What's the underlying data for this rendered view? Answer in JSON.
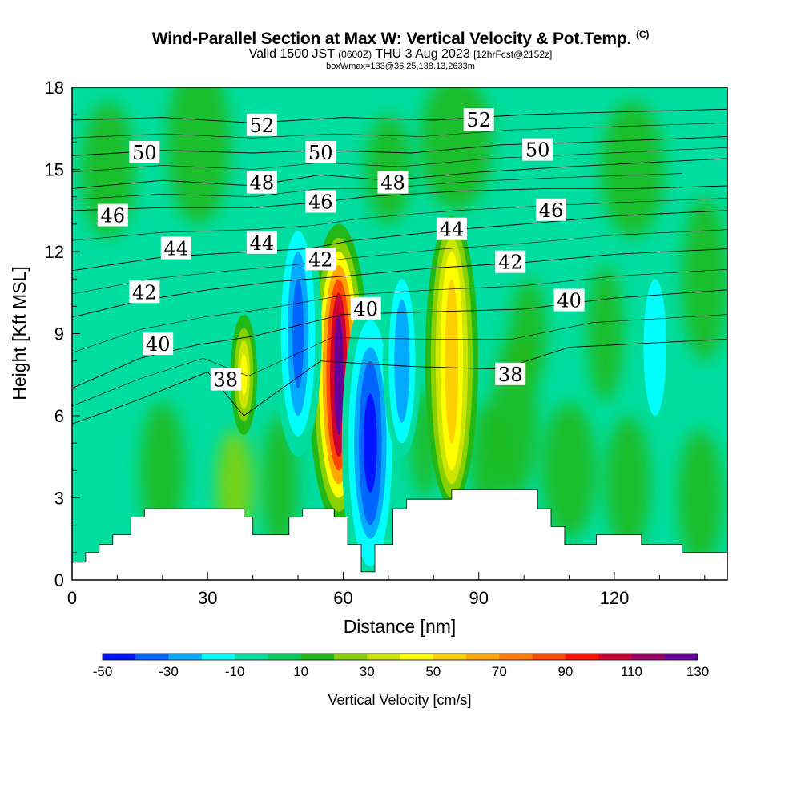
{
  "header": {
    "title": "Wind-Parallel Section at Max W: Vertical Velocity & Pot.Temp.",
    "title_mark": "(C)",
    "subtitle_valid": "Valid 1500 JST",
    "subtitle_utc": "(0600Z)",
    "subtitle_date": "THU 3 Aug 2023",
    "subtitle_fcst": "[12hrFcst@2152z]",
    "info_line": "boxWmax=133@36.25,138.13,2633m"
  },
  "chart_data": {
    "type": "heatmap",
    "title": "Wind-Parallel Section at Max W: Vertical Velocity & Pot.Temp.",
    "xlabel": "Distance [nm]",
    "ylabel": "Height [Kft MSL]",
    "xlim": [
      0,
      145
    ],
    "ylim": [
      0,
      18
    ],
    "x_ticks": [
      0,
      30,
      60,
      90,
      120
    ],
    "y_ticks": [
      0,
      3,
      6,
      9,
      12,
      15,
      18
    ],
    "colorbar": {
      "label": "Vertical Velocity [cm/s]",
      "tick_labels": [
        -50,
        -30,
        -10,
        10,
        30,
        50,
        70,
        90,
        110,
        130
      ],
      "bins": [
        -50,
        -40,
        -30,
        -20,
        -10,
        0,
        10,
        20,
        30,
        40,
        50,
        60,
        70,
        80,
        90,
        100,
        110,
        120,
        130
      ],
      "colors": [
        "#0014ff",
        "#0064ff",
        "#00aaff",
        "#00ffff",
        "#00dda0",
        "#00cc60",
        "#22b818",
        "#88d000",
        "#cce600",
        "#ffff00",
        "#ffd000",
        "#ffa800",
        "#ff7c00",
        "#ff4800",
        "#ff1000",
        "#cc0033",
        "#990066",
        "#660099"
      ]
    },
    "w_cells": [
      {
        "x": 38,
        "y": 7.5,
        "value": 42
      },
      {
        "x": 59,
        "y": 7.5,
        "value": 133
      },
      {
        "x": 84,
        "y": 8.0,
        "value": 52
      },
      {
        "x": 66,
        "y": 5.0,
        "value": -50
      },
      {
        "x": 50,
        "y": 9.0,
        "value": -35
      },
      {
        "x": 73,
        "y": 8.0,
        "value": -30
      },
      {
        "x": 129,
        "y": 8.5,
        "value": -12
      }
    ],
    "theta_contours_K": [
      {
        "value": 38,
        "heights": [
          [
            0,
            5.7
          ],
          [
            15,
            6.6
          ],
          [
            30,
            7.6
          ],
          [
            38,
            6.0
          ],
          [
            55,
            8.0
          ],
          [
            75,
            7.8
          ],
          [
            95,
            7.7
          ],
          [
            110,
            8.5
          ],
          [
            145,
            8.8
          ]
        ]
      },
      {
        "value": 40,
        "heights": [
          [
            0,
            7.0
          ],
          [
            15,
            8.1
          ],
          [
            28,
            8.6
          ],
          [
            40,
            8.9
          ],
          [
            60,
            9.7
          ],
          [
            80,
            9.8
          ],
          [
            100,
            9.9
          ],
          [
            120,
            10.3
          ],
          [
            145,
            10.6
          ]
        ]
      },
      {
        "value": 42,
        "heights": [
          [
            0,
            9.6
          ],
          [
            15,
            10.2
          ],
          [
            30,
            10.6
          ],
          [
            45,
            10.9
          ],
          [
            60,
            11.1
          ],
          [
            80,
            11.4
          ],
          [
            100,
            11.6
          ],
          [
            120,
            11.9
          ],
          [
            145,
            12.1
          ]
        ]
      },
      {
        "value": 44,
        "heights": [
          [
            0,
            11.3
          ],
          [
            20,
            11.8
          ],
          [
            40,
            12.0
          ],
          [
            52,
            12.1
          ],
          [
            62,
            12.4
          ],
          [
            85,
            12.8
          ],
          [
            100,
            13.0
          ],
          [
            120,
            13.3
          ],
          [
            145,
            13.5
          ]
        ]
      },
      {
        "value": 46,
        "heights": [
          [
            0,
            13.5
          ],
          [
            20,
            13.6
          ],
          [
            40,
            13.6
          ],
          [
            55,
            13.8
          ],
          [
            65,
            14.0
          ],
          [
            85,
            14.2
          ],
          [
            105,
            14.3
          ],
          [
            125,
            14.3
          ],
          [
            145,
            14.4
          ]
        ]
      },
      {
        "value": 48,
        "heights": [
          [
            0,
            14.3
          ],
          [
            20,
            14.6
          ],
          [
            40,
            14.4
          ],
          [
            55,
            14.8
          ],
          [
            70,
            14.6
          ],
          [
            90,
            14.9
          ],
          [
            110,
            15.1
          ],
          [
            145,
            15.4
          ]
        ]
      },
      {
        "value": 50,
        "heights": [
          [
            0,
            15.5
          ],
          [
            20,
            15.7
          ],
          [
            40,
            15.6
          ],
          [
            55,
            15.7
          ],
          [
            75,
            15.6
          ],
          [
            95,
            15.9
          ],
          [
            115,
            16.0
          ],
          [
            145,
            16.2
          ]
        ]
      },
      {
        "value": 52,
        "heights": [
          [
            0,
            16.8
          ],
          [
            20,
            16.9
          ],
          [
            40,
            16.7
          ],
          [
            60,
            16.9
          ],
          [
            80,
            16.8
          ],
          [
            100,
            17.0
          ],
          [
            120,
            17.1
          ],
          [
            145,
            17.2
          ]
        ]
      }
    ],
    "theta_labels": [
      {
        "text": "52",
        "x": 42,
        "y": 16.6
      },
      {
        "text": "52",
        "x": 90,
        "y": 16.8
      },
      {
        "text": "50",
        "x": 16,
        "y": 15.6
      },
      {
        "text": "50",
        "x": 55,
        "y": 15.6
      },
      {
        "text": "50",
        "x": 103,
        "y": 15.7
      },
      {
        "text": "48",
        "x": 42,
        "y": 14.5
      },
      {
        "text": "48",
        "x": 71,
        "y": 14.5
      },
      {
        "text": "46",
        "x": 9,
        "y": 13.3
      },
      {
        "text": "46",
        "x": 55,
        "y": 13.8
      },
      {
        "text": "46",
        "x": 106,
        "y": 13.5
      },
      {
        "text": "44",
        "x": 23,
        "y": 12.1
      },
      {
        "text": "44",
        "x": 42,
        "y": 12.3
      },
      {
        "text": "44",
        "x": 84,
        "y": 12.8
      },
      {
        "text": "42",
        "x": 16,
        "y": 10.5
      },
      {
        "text": "42",
        "x": 55,
        "y": 11.7
      },
      {
        "text": "42",
        "x": 97,
        "y": 11.6
      },
      {
        "text": "40",
        "x": 19,
        "y": 8.6
      },
      {
        "text": "40",
        "x": 65,
        "y": 9.9
      },
      {
        "text": "40",
        "x": 110,
        "y": 10.2
      },
      {
        "text": "38",
        "x": 34,
        "y": 7.3
      },
      {
        "text": "38",
        "x": 97,
        "y": 7.5
      }
    ],
    "terrain_kft": [
      [
        0,
        0.65
      ],
      [
        3,
        0.65
      ],
      [
        3,
        1.0
      ],
      [
        6,
        1.0
      ],
      [
        6,
        1.3
      ],
      [
        9,
        1.3
      ],
      [
        9,
        1.65
      ],
      [
        13,
        1.65
      ],
      [
        13,
        2.3
      ],
      [
        16,
        2.3
      ],
      [
        16,
        2.6
      ],
      [
        38,
        2.6
      ],
      [
        38,
        2.3
      ],
      [
        40,
        2.3
      ],
      [
        40,
        1.65
      ],
      [
        48,
        1.65
      ],
      [
        48,
        2.3
      ],
      [
        51,
        2.3
      ],
      [
        51,
        2.6
      ],
      [
        58,
        2.6
      ],
      [
        58,
        2.3
      ],
      [
        61,
        2.3
      ],
      [
        61,
        1.3
      ],
      [
        64,
        1.3
      ],
      [
        64,
        0.3
      ],
      [
        67,
        0.3
      ],
      [
        67,
        1.3
      ],
      [
        71,
        1.3
      ],
      [
        71,
        2.6
      ],
      [
        74,
        2.6
      ],
      [
        74,
        2.95
      ],
      [
        84,
        2.95
      ],
      [
        84,
        3.3
      ],
      [
        103,
        3.3
      ],
      [
        103,
        2.6
      ],
      [
        106,
        2.6
      ],
      [
        106,
        1.95
      ],
      [
        109,
        1.95
      ],
      [
        109,
        1.3
      ],
      [
        116,
        1.3
      ],
      [
        116,
        1.65
      ],
      [
        126,
        1.65
      ],
      [
        126,
        1.3
      ],
      [
        135,
        1.3
      ],
      [
        135,
        1.0
      ],
      [
        145,
        1.0
      ]
    ]
  },
  "colors": {
    "background": "#ffffff",
    "terrain": "#ffffff",
    "contour": "#000000",
    "field_base": "#00dda0"
  }
}
